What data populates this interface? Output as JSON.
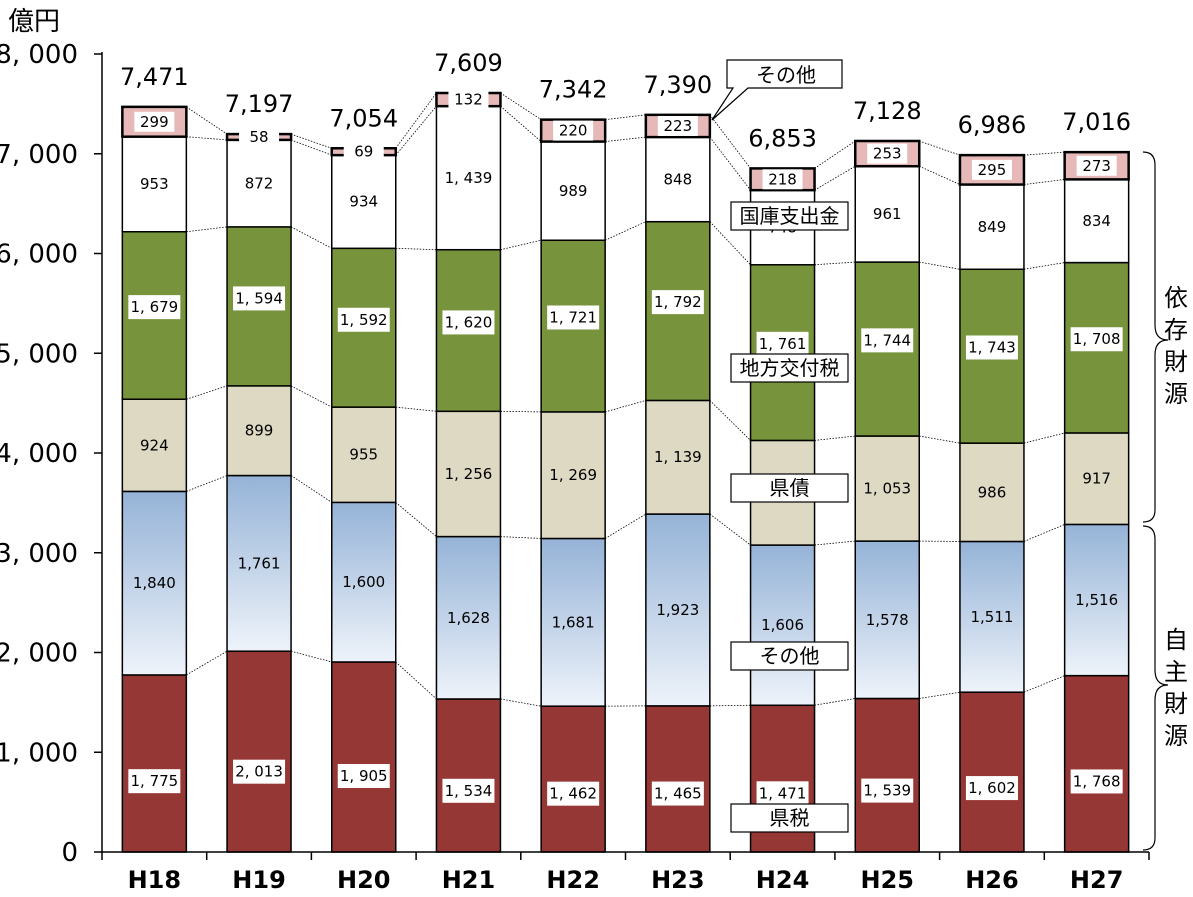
{
  "chart_data": {
    "type": "bar",
    "stacked": true,
    "y_unit": "億円",
    "ylim": [
      0,
      8000
    ],
    "yticks": [
      0,
      1000,
      2000,
      3000,
      4000,
      5000,
      6000,
      7000,
      8000
    ],
    "ytick_labels": [
      "0",
      "1, 000",
      "2, 000",
      "3, 000",
      "4, 000",
      "5, 000",
      "6, 000",
      "7, 000",
      "8, 000"
    ],
    "categories": [
      "H18",
      "H19",
      "H20",
      "H21",
      "H22",
      "H23",
      "H24",
      "H25",
      "H26",
      "H27"
    ],
    "totals": [
      7471,
      7197,
      7054,
      7609,
      7342,
      7390,
      6853,
      7128,
      6986,
      7016
    ],
    "total_labels": [
      "7,471",
      "7,197",
      "7,054",
      "7,609",
      "7,342",
      "7,390",
      "6,853",
      "7,128",
      "6,986",
      "7,016"
    ],
    "series": [
      {
        "name": "県税",
        "color": "#953735",
        "values": [
          1775,
          2013,
          1905,
          1534,
          1462,
          1465,
          1471,
          1539,
          1602,
          1768
        ],
        "labels": [
          "1, 775",
          "2, 013",
          "1, 905",
          "1, 534",
          "1, 462",
          "1, 465",
          "1, 471",
          "1, 539",
          "1, 602",
          "1, 768"
        ]
      },
      {
        "name": "その他",
        "color": "#95b3d7",
        "values": [
          1840,
          1761,
          1600,
          1628,
          1681,
          1923,
          1606,
          1578,
          1511,
          1516
        ],
        "labels": [
          "1,840",
          "1,761",
          "1,600",
          "1,628",
          "1,681",
          "1,923",
          "1,606",
          "1,578",
          "1,511",
          "1,516"
        ]
      },
      {
        "name": "県債",
        "color": "#ddd9c3",
        "values": [
          924,
          899,
          955,
          1256,
          1269,
          1139,
          1049,
          1053,
          986,
          917
        ],
        "labels": [
          "924",
          "899",
          "955",
          "1, 256",
          "1, 269",
          "1, 139",
          "1, 049",
          "1, 053",
          "986",
          "917"
        ]
      },
      {
        "name": "地方交付税",
        "color": "#77933c",
        "values": [
          1679,
          1594,
          1592,
          1620,
          1721,
          1792,
          1761,
          1744,
          1743,
          1708
        ],
        "labels": [
          "1, 679",
          "1, 594",
          "1, 592",
          "1, 620",
          "1, 721",
          "1, 792",
          "1, 761",
          "1, 744",
          "1, 743",
          "1, 708"
        ]
      },
      {
        "name": "国庫支出金",
        "color": "#ffffff",
        "values": [
          953,
          872,
          934,
          1439,
          989,
          848,
          748,
          961,
          849,
          834
        ],
        "labels": [
          "953",
          "872",
          "934",
          "1, 439",
          "989",
          "848",
          "748",
          "961",
          "849",
          "834"
        ]
      },
      {
        "name": "その他",
        "color": "#e6b9b8",
        "values": [
          299,
          58,
          69,
          132,
          220,
          223,
          218,
          253,
          295,
          273
        ],
        "labels": [
          "299",
          "58",
          "69",
          "132",
          "220",
          "223",
          "218",
          "253",
          "295",
          "273"
        ]
      }
    ],
    "bracket_labels": {
      "upper": "依存財源",
      "lower": "自主財源"
    }
  }
}
